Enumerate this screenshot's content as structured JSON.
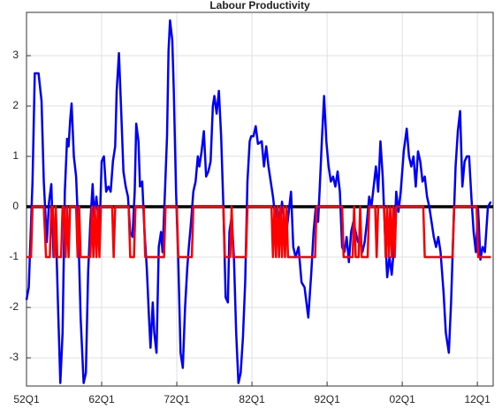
{
  "chart_data": {
    "type": "line",
    "title": "Labour Productivity",
    "xlim": [
      1952,
      2014.1
    ],
    "ylim": [
      -3.56,
      3.86
    ],
    "xticks": [
      {
        "value": 1952,
        "label": "52Q1"
      },
      {
        "value": 1962,
        "label": "62Q1"
      },
      {
        "value": 1972,
        "label": "72Q1"
      },
      {
        "value": 1982,
        "label": "82Q1"
      },
      {
        "value": 1992,
        "label": "92Q1"
      },
      {
        "value": 2002,
        "label": "02Q1"
      },
      {
        "value": 2012,
        "label": "12Q1"
      }
    ],
    "yticks": [
      -3,
      -2,
      -1,
      0,
      1,
      2,
      3
    ],
    "grid": true,
    "zero_line": true,
    "series": [
      {
        "color": "#0000ff",
        "x": [
          1952.0,
          1952.3,
          1952.8,
          1953.1,
          1953.6,
          1954.0,
          1954.3,
          1954.7,
          1955.0,
          1955.3,
          1955.6,
          1955.9,
          1956.2,
          1956.5,
          1956.8,
          1957.1,
          1957.4,
          1957.6,
          1957.8,
          1958.0,
          1958.3,
          1958.6,
          1958.9,
          1959.2,
          1959.6,
          1959.9,
          1960.2,
          1960.5,
          1960.8,
          1961.0,
          1961.3,
          1961.6,
          1961.8,
          1962.0,
          1962.3,
          1962.6,
          1962.9,
          1963.2,
          1963.5,
          1963.8,
          1964.0,
          1964.3,
          1964.6,
          1964.9,
          1965.2,
          1965.5,
          1965.8,
          1966.1,
          1966.4,
          1966.6,
          1966.9,
          1967.1,
          1967.4,
          1967.7,
          1968.0,
          1968.3,
          1968.5,
          1968.8,
          1969.0,
          1969.3,
          1969.6,
          1969.9,
          1970.1,
          1970.4,
          1970.7,
          1970.9,
          1971.1,
          1971.4,
          1971.6,
          1971.9,
          1972.2,
          1972.5,
          1972.8,
          1973.1,
          1973.4,
          1973.6,
          1973.9,
          1974.2,
          1974.5,
          1974.8,
          1975.0,
          1975.3,
          1975.6,
          1975.9,
          1976.2,
          1976.5,
          1976.8,
          1977.0,
          1977.3,
          1977.6,
          1977.9,
          1978.2,
          1978.5,
          1978.8,
          1979.0,
          1979.3,
          1979.6,
          1979.9,
          1980.2,
          1980.5,
          1980.8,
          1981.1,
          1981.4,
          1981.7,
          1981.9,
          1982.2,
          1982.5,
          1982.8,
          1983.3,
          1983.6,
          1983.9,
          1984.2,
          1984.5,
          1984.8,
          1985.1,
          1985.4,
          1985.7,
          1986.0,
          1986.3,
          1986.6,
          1986.9,
          1987.2,
          1987.5,
          1987.8,
          1988.2,
          1988.6,
          1989.0,
          1989.5,
          1989.9,
          1990.2,
          1990.5,
          1990.8,
          1991.0,
          1991.3,
          1991.6,
          1991.9,
          1992.2,
          1992.5,
          1992.8,
          1993.1,
          1993.4,
          1993.7,
          1994.0,
          1994.3,
          1994.6,
          1994.9,
          1995.2,
          1995.5,
          1995.8,
          1996.1,
          1996.4,
          1996.7,
          1997.0,
          1997.3,
          1997.6,
          1997.9,
          1998.2,
          1998.5,
          1998.8,
          1999.1,
          1999.4,
          1999.7,
          2000.0,
          2000.3,
          2000.6,
          2000.9,
          2001.2,
          2001.5,
          2001.8,
          2002.2,
          2002.6,
          2002.9,
          2003.2,
          2003.5,
          2003.8,
          2004.1,
          2004.4,
          2004.7,
          2005.0,
          2005.3,
          2005.6,
          2005.9,
          2006.2,
          2006.5,
          2006.8,
          2007.1,
          2007.5,
          2007.8,
          2008.2,
          2008.5,
          2008.8,
          2009.1,
          2009.4,
          2009.7,
          2010.0,
          2010.3,
          2010.6,
          2010.9,
          2011.2,
          2011.5,
          2011.8,
          2012.1,
          2012.4,
          2012.7,
          2013.0,
          2013.4,
          2013.8
        ],
        "values": [
          -1.85,
          -1.6,
          0.5,
          2.65,
          2.65,
          2.1,
          0.5,
          -0.7,
          0.1,
          0.45,
          -1.0,
          -0.4,
          -2.0,
          -3.5,
          -2.5,
          0.3,
          1.35,
          1.2,
          1.7,
          2.05,
          1.0,
          0.6,
          -0.5,
          -2.2,
          -3.5,
          -3.3,
          -1.3,
          -0.3,
          0.45,
          -0.2,
          0.2,
          -0.3,
          -0.1,
          0.9,
          1.0,
          0.3,
          0.4,
          0.3,
          0.9,
          1.2,
          2.3,
          3.05,
          1.9,
          0.7,
          0.4,
          0.2,
          -0.5,
          -0.6,
          0.3,
          1.65,
          1.3,
          0.4,
          0.5,
          -0.5,
          -1.2,
          -2.2,
          -2.8,
          -1.9,
          -2.5,
          -2.9,
          -0.8,
          -0.5,
          -0.9,
          0.2,
          1.4,
          3.1,
          3.7,
          3.3,
          2.3,
          0.3,
          -1.1,
          -2.9,
          -3.2,
          -2.0,
          -1.2,
          -0.8,
          -0.3,
          0.3,
          0.5,
          1.0,
          0.8,
          1.1,
          1.5,
          0.6,
          0.7,
          0.9,
          2.0,
          2.2,
          1.85,
          2.3,
          1.4,
          0.0,
          -1.8,
          -1.9,
          -0.5,
          -0.2,
          -1.0,
          -2.5,
          -3.5,
          -3.3,
          -2.6,
          -1.5,
          0.5,
          1.3,
          1.4,
          1.4,
          1.6,
          1.25,
          1.3,
          0.8,
          1.2,
          0.8,
          0.5,
          0.2,
          -0.2,
          0.0,
          -0.4,
          0.1,
          -0.3,
          -0.5,
          -0.1,
          0.3,
          -0.8,
          -1.0,
          -0.8,
          -1.5,
          -1.6,
          -2.2,
          -1.3,
          -0.5,
          0.0,
          -0.3,
          0.3,
          1.3,
          2.2,
          1.3,
          0.8,
          0.5,
          0.6,
          0.4,
          0.7,
          0.3,
          -0.8,
          -0.9,
          -0.6,
          -1.1,
          -0.5,
          -0.3,
          -0.5,
          -0.7,
          -0.6,
          -0.9,
          -0.7,
          -0.3,
          0.2,
          0.0,
          0.4,
          0.8,
          0.3,
          1.3,
          0.6,
          -0.5,
          -1.4,
          -1.0,
          -1.35,
          -0.8,
          0.3,
          -0.1,
          0.3,
          1.1,
          1.55,
          1.0,
          0.8,
          1.0,
          0.4,
          1.1,
          0.9,
          0.5,
          0.6,
          0.2,
          0.0,
          -0.3,
          -0.6,
          -0.8,
          -0.6,
          -0.9,
          -1.7,
          -2.5,
          -2.9,
          -1.9,
          -0.5,
          0.8,
          1.5,
          1.9,
          0.4,
          0.9,
          1.0,
          1.0,
          0.2,
          -0.5,
          -0.9,
          -0.05,
          -1.05,
          -0.8,
          -0.9,
          0.0,
          0.1
        ]
      },
      {
        "color": "#ff0000",
        "x": [
          1952.0,
          1952.6,
          1952.8,
          1954.3,
          1954.6,
          1955.1,
          1955.3,
          1955.5,
          1955.7,
          1955.9,
          1956.1,
          1956.6,
          1956.8,
          1957.0,
          1957.2,
          1957.4,
          1957.6,
          1957.8,
          1958.6,
          1958.8,
          1959.0,
          1959.2,
          1960.5,
          1960.7,
          1960.9,
          1961.1,
          1961.3,
          1961.5,
          1961.7,
          1961.9,
          1963.4,
          1963.6,
          1963.8,
          1965.6,
          1965.8,
          1966.3,
          1966.5,
          1967.6,
          1967.8,
          1970.3,
          1970.5,
          1972.0,
          1972.2,
          1974.0,
          1974.2,
          1978.2,
          1978.4,
          1979.1,
          1979.3,
          1979.5,
          1981.2,
          1981.4,
          1984.6,
          1984.8,
          1985.0,
          1985.2,
          1985.4,
          1985.6,
          1985.8,
          1986.0,
          1986.2,
          1986.4,
          1986.6,
          1986.8,
          1990.4,
          1990.6,
          1994.0,
          1994.2,
          1995.4,
          1995.6,
          1995.8,
          1996.2,
          1996.4,
          1996.6,
          1997.4,
          1997.6,
          1998.4,
          1998.6,
          1998.8,
          1999.6,
          1999.8,
          2000.0,
          2000.2,
          2000.4,
          2000.6,
          2000.8,
          2001.0,
          2001.2,
          2004.8,
          2005.0,
          2008.7,
          2008.9,
          2011.9,
          2012.1,
          2013.8
        ],
        "values": [
          -1,
          -1,
          0,
          0,
          -1,
          -1,
          0,
          0,
          -1,
          0,
          -1,
          -1,
          0,
          0,
          -1,
          0,
          -1,
          0,
          0,
          -1,
          0,
          -1,
          -1,
          0,
          -1,
          0,
          -1,
          0,
          -1,
          0,
          0,
          -1,
          0,
          0,
          -1,
          -1,
          0,
          0,
          -1,
          -1,
          0,
          0,
          -1,
          -1,
          0,
          0,
          -1,
          -1,
          0,
          -1,
          -1,
          0,
          0,
          -1,
          0,
          -1,
          0,
          -1,
          0,
          -1,
          0,
          -1,
          0,
          -1,
          -1,
          0,
          0,
          -1,
          -1,
          0,
          -1,
          -1,
          0,
          -1,
          -1,
          0,
          0,
          -1,
          0,
          0,
          -1,
          0,
          -1,
          0,
          -1,
          0,
          -1,
          0,
          0,
          -1,
          -1,
          0,
          0,
          -1,
          -1
        ]
      }
    ]
  }
}
